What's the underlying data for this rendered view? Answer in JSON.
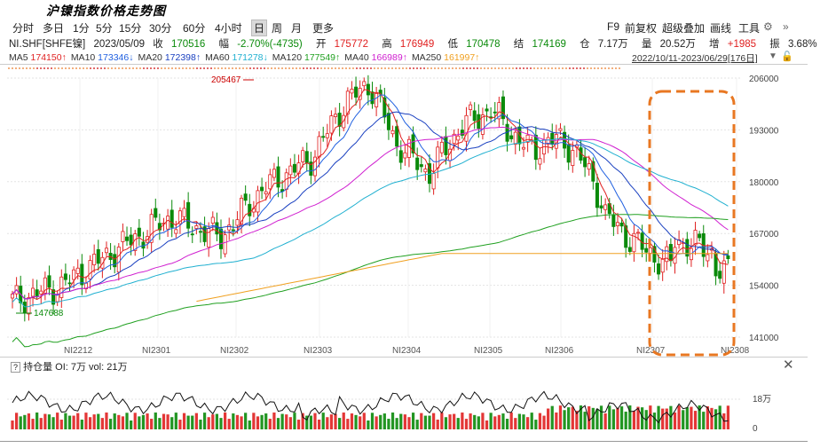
{
  "page_title": "沪镍指数价格走势图",
  "periods": [
    "分时",
    "多日",
    "1分",
    "5分",
    "15分",
    "30分",
    "60分",
    "4小时",
    "日",
    "周",
    "月",
    "更多"
  ],
  "active_period": "日",
  "tools_right": [
    "F9",
    "前复权",
    "超级叠加",
    "画线",
    "工具"
  ],
  "symbol": "NI.SHF[SHFE镍]",
  "info": {
    "date": "2023/05/09",
    "close_label": "收",
    "close": "170516",
    "change_label": "幅",
    "change": "-2.70%(-4735)",
    "open_label": "开",
    "open": "175772",
    "high_label": "高",
    "high": "176949",
    "low_label": "低",
    "low": "170478",
    "settle_label": "结",
    "settle": "174169",
    "oi_label": "仓",
    "oi": "7.17万",
    "vol_label": "量",
    "vol": "20.52万",
    "inc_label": "增",
    "inc": "+1985",
    "amp_label": "振",
    "amp": "3.68%"
  },
  "ma": [
    {
      "name": "MA5",
      "value": "174150↑",
      "color": "#e02020"
    },
    {
      "name": "MA10",
      "value": "173346↓",
      "color": "#2060e0"
    },
    {
      "name": "MA20",
      "value": "172398↑",
      "color": "#1a40c0"
    },
    {
      "name": "MA60",
      "value": "171278↓",
      "color": "#20b0d0"
    },
    {
      "name": "MA120",
      "value": "177549↑",
      "color": "#20a020"
    },
    {
      "name": "MA40",
      "value": "166989↑",
      "color": "#d020d0"
    },
    {
      "name": "MA250",
      "value": "161997↑",
      "color": "#f0a020"
    }
  ],
  "range_label": "2022/10/11-2023/06/29[176日]",
  "price_axis": [
    "206000",
    "193000",
    "180000",
    "167000",
    "154000",
    "141000"
  ],
  "x_labels": [
    "NI2212",
    "NI2301",
    "NI2302",
    "NI2303",
    "NI2304",
    "NI2305",
    "NI2306",
    "NI2307",
    "NI2308"
  ],
  "annotations": {
    "high": "205467",
    "low": "147688"
  },
  "oi_header": {
    "q": "?",
    "title": "持仓量",
    "oi": "OI: 7万",
    "vol": "vol: 21万"
  },
  "vol_axis": [
    "18万",
    "0"
  ],
  "colors": {
    "up": "#e02020",
    "down": "#0a8a0a",
    "highlight": "#e87722"
  }
}
